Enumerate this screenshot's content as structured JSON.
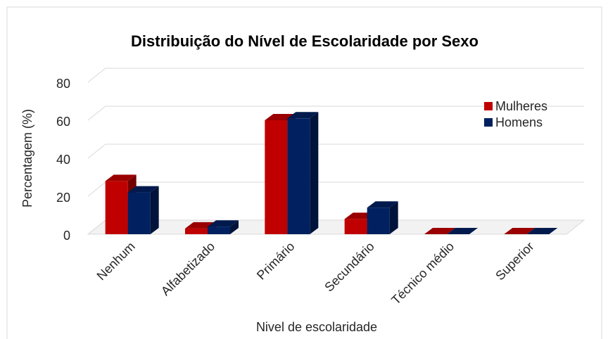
{
  "chart_data": {
    "type": "bar3d",
    "title": "Distribuição do Nível de Escolaridade por Sexo",
    "x_label": "Nivel de escolaridade",
    "y_label": "Percentagem (%)",
    "categories": [
      "Nenhum",
      "Alfabetizado",
      "Primário",
      "Secundário",
      "Técnico médio",
      "Superior"
    ],
    "series": [
      {
        "name": "Mulheres",
        "color": "#c00000",
        "values": [
          28,
          3,
          60,
          8,
          0,
          0
        ]
      },
      {
        "name": "Homens",
        "color": "#002060",
        "values": [
          22,
          4,
          61,
          14,
          0,
          0
        ]
      }
    ],
    "ylim": [
      0,
      80
    ],
    "yticks": [
      0,
      20,
      40,
      60,
      80
    ],
    "grid": true,
    "legend": "upper right"
  }
}
